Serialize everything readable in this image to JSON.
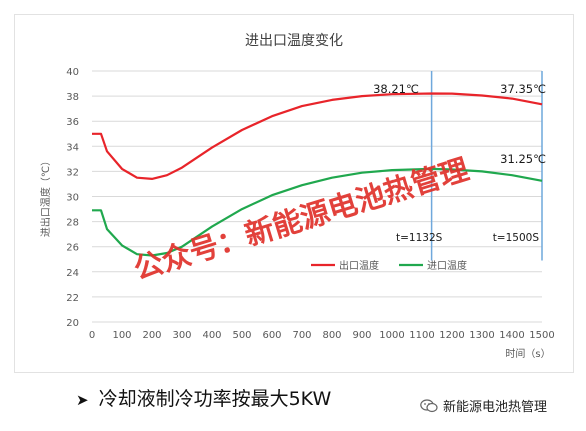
{
  "chart_data": {
    "type": "line",
    "title": "进出口温度变化",
    "xlabel": "时间（s）",
    "ylabel": "进出口温度（℃）",
    "xlim": [
      0,
      1500
    ],
    "ylim": [
      20,
      40
    ],
    "x_ticks": [
      "0",
      "100",
      "200",
      "300",
      "400",
      "500",
      "600",
      "700",
      "800",
      "900",
      "1000",
      "1100",
      "1200",
      "1300",
      "1400",
      "1500"
    ],
    "y_ticks": [
      "20",
      "22",
      "24",
      "26",
      "28",
      "30",
      "32",
      "34",
      "36",
      "38",
      "40"
    ],
    "grid": "horizontal",
    "legend_position": "center",
    "series": [
      {
        "name": "出口温度",
        "color": "#e8242a",
        "points": [
          [
            0,
            35.0
          ],
          [
            30,
            35.0
          ],
          [
            50,
            33.6
          ],
          [
            100,
            32.2
          ],
          [
            150,
            31.5
          ],
          [
            200,
            31.4
          ],
          [
            250,
            31.7
          ],
          [
            300,
            32.3
          ],
          [
            400,
            33.9
          ],
          [
            500,
            35.3
          ],
          [
            600,
            36.4
          ],
          [
            700,
            37.2
          ],
          [
            800,
            37.7
          ],
          [
            900,
            38.0
          ],
          [
            1000,
            38.15
          ],
          [
            1132,
            38.21
          ],
          [
            1200,
            38.2
          ],
          [
            1300,
            38.05
          ],
          [
            1400,
            37.8
          ],
          [
            1500,
            37.35
          ]
        ]
      },
      {
        "name": "进口温度",
        "color": "#20a84e",
        "points": [
          [
            0,
            28.9
          ],
          [
            30,
            28.9
          ],
          [
            50,
            27.4
          ],
          [
            100,
            26.1
          ],
          [
            150,
            25.4
          ],
          [
            200,
            25.3
          ],
          [
            250,
            25.5
          ],
          [
            300,
            26.0
          ],
          [
            400,
            27.6
          ],
          [
            500,
            29.0
          ],
          [
            600,
            30.1
          ],
          [
            700,
            30.9
          ],
          [
            800,
            31.5
          ],
          [
            900,
            31.9
          ],
          [
            1000,
            32.1
          ],
          [
            1132,
            32.2
          ],
          [
            1200,
            32.15
          ],
          [
            1300,
            32.0
          ],
          [
            1400,
            31.7
          ],
          [
            1500,
            31.25
          ]
        ]
      }
    ],
    "markers": [
      {
        "x": 1132,
        "label": "t=1132S"
      },
      {
        "x": 1500,
        "label": "t=1500S"
      }
    ],
    "annotations": [
      {
        "text": "38.21℃",
        "x": 1132,
        "y": 38.21
      },
      {
        "text": "37.35℃",
        "x": 1500,
        "y": 37.35
      },
      {
        "text": "31.25℃",
        "x": 1500,
        "y": 31.25
      }
    ],
    "colors": {
      "grid": "#d9d9d9",
      "axis_text": "#595959",
      "marker_line": "#6fa8dc"
    }
  },
  "watermark": "公众号：新能源电池热管理",
  "note": "冷却液制冷功率按最大5KW",
  "note_arrow": "➤",
  "account": "新能源电池热管理",
  "account_icon": "wechat-icon"
}
